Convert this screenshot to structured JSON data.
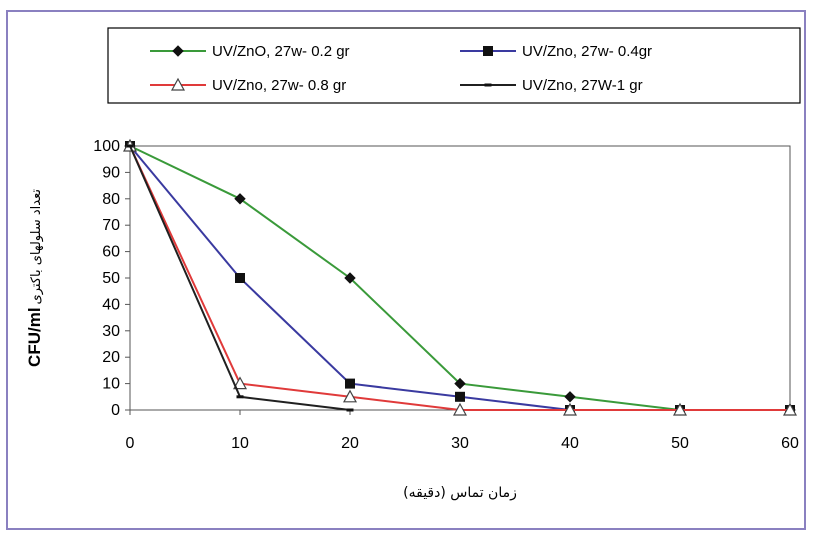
{
  "chart_data": {
    "type": "line",
    "title": "",
    "xlabel": "زمان تماس (دقیقه)",
    "ylabel_bold": "CFU/ml",
    "ylabel_text": "تعداد سلولهای باکتری",
    "xlim": [
      0,
      60
    ],
    "ylim": [
      0,
      100
    ],
    "xticks": [
      0,
      10,
      20,
      30,
      40,
      50,
      60
    ],
    "yticks": [
      0,
      10,
      20,
      30,
      40,
      50,
      60,
      70,
      80,
      90,
      100
    ],
    "grid": false,
    "legend_position": "top",
    "series": [
      {
        "name": "UV/ZnO, 27w- 0.2 gr",
        "color": "#3a9a3a",
        "marker": "diamond",
        "x": [
          0,
          10,
          20,
          30,
          40,
          50,
          60
        ],
        "y": [
          100,
          80,
          50,
          10,
          5,
          0,
          0
        ]
      },
      {
        "name": "UV/Zno, 27w- 0.4gr",
        "color": "#3a3aa0",
        "marker": "square",
        "x": [
          0,
          10,
          20,
          30,
          40,
          50,
          60
        ],
        "y": [
          100,
          50,
          10,
          5,
          0,
          0,
          0
        ]
      },
      {
        "name": "UV/Zno, 27w- 0.8 gr",
        "color": "#e03a3a",
        "marker": "triangle-open",
        "x": [
          0,
          10,
          20,
          30,
          40,
          50,
          60
        ],
        "y": [
          100,
          10,
          5,
          0,
          0,
          0,
          0
        ]
      },
      {
        "name": "UV/Zno, 27W-1 gr",
        "color": "#202020",
        "marker": "dash",
        "x": [
          0,
          10,
          20
        ],
        "y": [
          100,
          5,
          0
        ]
      }
    ]
  }
}
